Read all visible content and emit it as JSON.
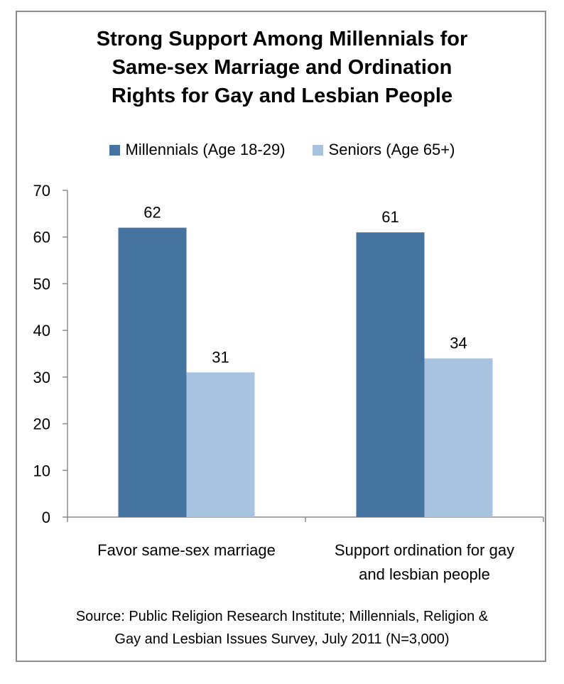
{
  "chart_data": {
    "type": "bar",
    "title_lines": [
      "Strong Support Among Millennials for",
      "Same-sex Marriage and Ordination",
      "Rights for Gay and Lesbian People"
    ],
    "categories": [
      [
        "Favor same-sex marriage"
      ],
      [
        "Support ordination for gay",
        "and lesbian people"
      ]
    ],
    "series": [
      {
        "name": "Millennials (Age 18-29)",
        "values": [
          62,
          61
        ],
        "color": "#4674a0"
      },
      {
        "name": "Seniors (Age 65+)",
        "values": [
          31,
          34
        ],
        "color": "#a8c3e0"
      }
    ],
    "ylim": [
      0,
      70
    ],
    "yticks": [
      "0",
      "10",
      "20",
      "30",
      "40",
      "50",
      "60",
      "70"
    ],
    "grid": false,
    "legend_position": "top",
    "data_labels": true
  },
  "source_lines": [
    "Source: Public Religion Research Institute; Millennials, Religion &",
    "Gay and Lesbian Issues Survey, July 2011 (N=3,000)"
  ]
}
